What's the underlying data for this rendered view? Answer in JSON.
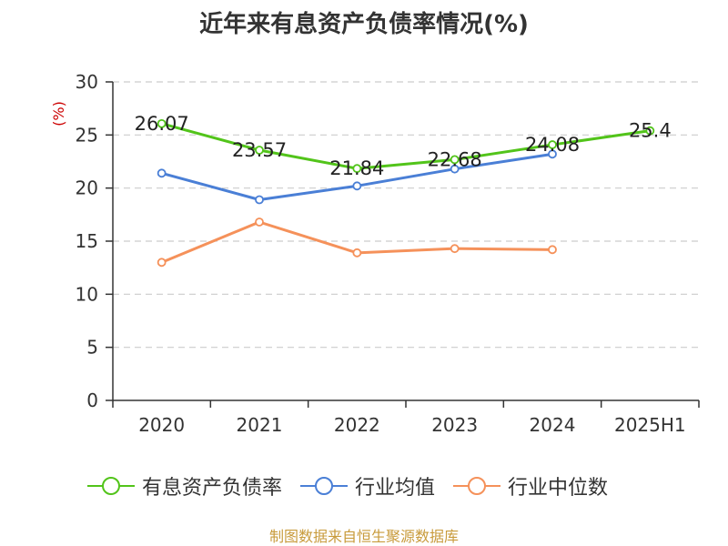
{
  "chart_data": {
    "type": "line",
    "title": "近年来有息资产负债率情况(%)",
    "ylabel": "(%)",
    "categories": [
      "2020",
      "2021",
      "2022",
      "2023",
      "2024",
      "2025H1"
    ],
    "ylim": [
      0,
      30
    ],
    "yticks": [
      0,
      5,
      10,
      15,
      20,
      25,
      30
    ],
    "grid": true,
    "legend_position": "bottom",
    "series": [
      {
        "name": "有息资产负债率",
        "color": "#52c41a",
        "values": [
          26.07,
          23.57,
          21.84,
          22.68,
          24.08,
          25.4
        ],
        "labels": [
          "26.07",
          "23.57",
          "21.84",
          "22.68",
          "24.08",
          "25.4"
        ]
      },
      {
        "name": "行业均值",
        "color": "#4a7fd6",
        "values": [
          21.4,
          18.9,
          20.2,
          21.8,
          23.2,
          null
        ]
      },
      {
        "name": "行业中位数",
        "color": "#f5915a",
        "values": [
          13.0,
          16.8,
          13.9,
          14.3,
          14.2,
          null
        ]
      }
    ]
  },
  "source": "制图数据来自恒生聚源数据库"
}
